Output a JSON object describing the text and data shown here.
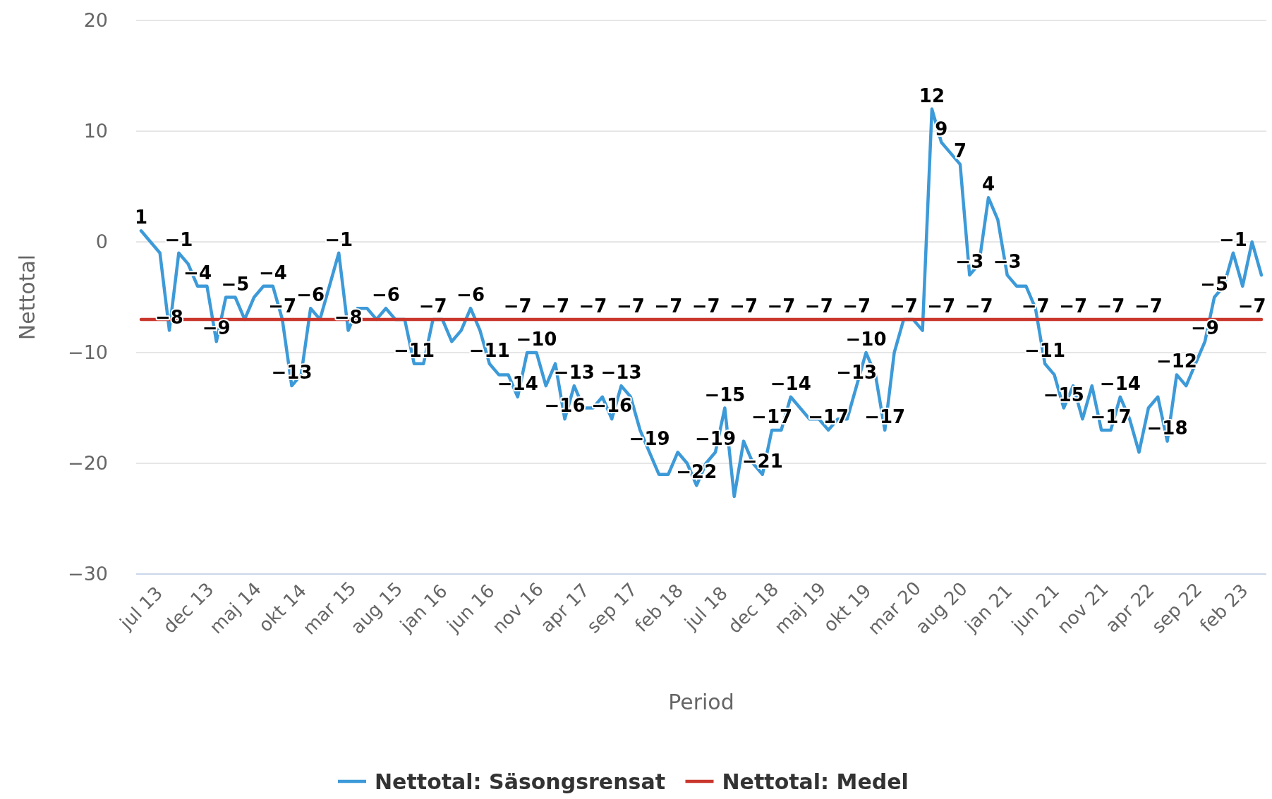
{
  "chart_data": {
    "type": "line",
    "xlabel": "Period",
    "ylabel": "Nettotal",
    "categories": [
      "jul 13",
      null,
      null,
      null,
      null,
      "dec 13",
      null,
      null,
      null,
      null,
      "maj 14",
      null,
      null,
      null,
      null,
      "okt 14",
      null,
      null,
      null,
      null,
      "mar 15",
      null,
      null,
      null,
      null,
      "aug 15",
      null,
      null,
      null,
      null,
      "jan 16",
      null,
      null,
      null,
      null,
      "jun 16",
      null,
      null,
      null,
      null,
      "nov 16",
      null,
      null,
      null,
      null,
      "apr 17",
      null,
      null,
      null,
      null,
      "sep 17",
      null,
      null,
      null,
      null,
      "feb 18",
      null,
      null,
      null,
      null,
      "jul 18",
      null,
      null,
      null,
      null,
      "dec 18",
      null,
      null,
      null,
      null,
      "maj 19",
      null,
      null,
      null,
      null,
      "okt 19",
      null,
      null,
      null,
      null,
      "mar 20",
      null,
      null,
      null,
      null,
      "aug 20",
      null,
      null,
      null,
      null,
      "jan 21",
      null,
      null,
      null,
      null,
      "jun 21",
      null,
      null,
      null,
      null,
      "nov 21",
      null,
      null,
      null,
      null,
      "apr 22",
      null,
      null,
      null,
      null,
      "sep 22",
      null,
      null,
      null,
      null,
      "feb 23",
      null,
      null,
      null,
      null
    ],
    "series": [
      {
        "name": "Nettotal: Säsongsrensat",
        "color": "#3d9ad8",
        "values": [
          1,
          0,
          -1,
          -8,
          -1,
          -2,
          -4,
          -4,
          -9,
          -5,
          -5,
          -7,
          -5,
          -4,
          -4,
          -7,
          -13,
          -12,
          -6,
          -7,
          -4,
          -1,
          -8,
          -6,
          -6,
          -7,
          -6,
          -7,
          -7,
          -11,
          -11,
          -7,
          -7,
          -9,
          -8,
          -6,
          -8,
          -11,
          -12,
          -12,
          -14,
          -10,
          -10,
          -13,
          -11,
          -16,
          -13,
          -15,
          -15,
          -14,
          -16,
          -13,
          -14,
          -17,
          -19,
          -21,
          -21,
          -19,
          -20,
          -22,
          -20,
          -19,
          -15,
          -23,
          -18,
          -20,
          -21,
          -17,
          -17,
          -14,
          -15,
          -16,
          -16,
          -17,
          -16,
          -16,
          -13,
          -10,
          -12,
          -17,
          -10,
          -7,
          -7,
          -8,
          12,
          9,
          8,
          7,
          -3,
          -2,
          4,
          2,
          -3,
          -4,
          -4,
          -6,
          -11,
          -12,
          -15,
          -13,
          -16,
          -13,
          -17,
          -17,
          -14,
          -16,
          -19,
          -15,
          -14,
          -18,
          -12,
          -13,
          -11,
          -9,
          -5,
          -4,
          -1,
          -4,
          0,
          -3
        ],
        "value_labels": [
          "1",
          null,
          null,
          "−8",
          "−1",
          null,
          "−4",
          null,
          "−9",
          null,
          "−5",
          null,
          null,
          null,
          "−4",
          null,
          "−13",
          null,
          "−6",
          null,
          null,
          "−1",
          "−8",
          null,
          null,
          null,
          "−6",
          null,
          null,
          "−11",
          null,
          null,
          null,
          null,
          null,
          "−6",
          null,
          "−11",
          null,
          null,
          "−14",
          null,
          "−10",
          null,
          null,
          "−16",
          "−13",
          null,
          null,
          null,
          "−16",
          "−13",
          null,
          null,
          "−19",
          null,
          null,
          null,
          null,
          "−22",
          null,
          "−19",
          "−15",
          null,
          null,
          null,
          "−21",
          "−17",
          null,
          "−14",
          null,
          null,
          null,
          "−17",
          null,
          null,
          "−13",
          "−10",
          null,
          "−17",
          null,
          null,
          null,
          null,
          "12",
          "9",
          null,
          "7",
          "−3",
          null,
          "4",
          null,
          "−3",
          null,
          null,
          null,
          "−11",
          null,
          "−15",
          null,
          null,
          null,
          null,
          "−17",
          "−14",
          null,
          null,
          null,
          null,
          "−18",
          "−12",
          null,
          null,
          "−9",
          "−5",
          null,
          "−1",
          null,
          null,
          null
        ]
      },
      {
        "name": "Nettotal: Medel",
        "color": "#c9372c",
        "values": [
          -7,
          -7,
          -7,
          -7,
          -7,
          -7,
          -7,
          -7,
          -7,
          -7,
          -7,
          -7,
          -7,
          -7,
          -7,
          -7,
          -7,
          -7,
          -7,
          -7,
          -7,
          -7,
          -7,
          -7,
          -7,
          -7,
          -7,
          -7,
          -7,
          -7,
          -7,
          -7,
          -7,
          -7,
          -7,
          -7,
          -7,
          -7,
          -7,
          -7,
          -7,
          -7,
          -7,
          -7,
          -7,
          -7,
          -7,
          -7,
          -7,
          -7,
          -7,
          -7,
          -7,
          -7,
          -7,
          -7,
          -7,
          -7,
          -7,
          -7,
          -7,
          -7,
          -7,
          -7,
          -7,
          -7,
          -7,
          -7,
          -7,
          -7,
          -7,
          -7,
          -7,
          -7,
          -7,
          -7,
          -7,
          -7,
          -7,
          -7,
          -7,
          -7,
          -7,
          -7,
          -7,
          -7,
          -7,
          -7,
          -7,
          -7,
          -7,
          -7,
          -7,
          -7,
          -7,
          -7,
          -7,
          -7,
          -7,
          -7,
          -7,
          -7,
          -7,
          -7,
          -7,
          -7,
          -7,
          -7,
          -7,
          -7,
          -7,
          -7,
          -7,
          -7,
          -7,
          -7,
          -7,
          -7,
          -7,
          -7
        ],
        "value_labels": [
          null,
          null,
          null,
          null,
          null,
          null,
          null,
          null,
          null,
          null,
          null,
          null,
          null,
          null,
          null,
          "−7",
          null,
          null,
          null,
          null,
          null,
          null,
          null,
          null,
          null,
          null,
          null,
          null,
          null,
          null,
          null,
          "−7",
          null,
          null,
          null,
          null,
          null,
          null,
          null,
          null,
          "−7",
          null,
          null,
          null,
          "−7",
          null,
          null,
          null,
          "−7",
          null,
          null,
          null,
          "−7",
          null,
          null,
          null,
          "−7",
          null,
          null,
          null,
          "−7",
          null,
          null,
          null,
          "−7",
          null,
          null,
          null,
          "−7",
          null,
          null,
          null,
          "−7",
          null,
          null,
          null,
          "−7",
          null,
          null,
          null,
          null,
          "−7",
          null,
          null,
          null,
          "−7",
          null,
          null,
          null,
          "−7",
          null,
          null,
          null,
          null,
          null,
          "−7",
          null,
          null,
          null,
          "−7",
          null,
          null,
          null,
          "−7",
          null,
          null,
          null,
          "−7",
          null,
          null,
          null,
          null,
          null,
          null,
          null,
          null,
          null,
          null,
          "−7",
          null
        ]
      }
    ],
    "ylim": [
      -30,
      20
    ],
    "yticks": [
      20,
      10,
      0,
      {
        "value": -10,
        "label": "−10"
      },
      {
        "value": -20,
        "label": "−20"
      },
      {
        "value": -30,
        "label": "−30"
      }
    ],
    "grid": "y",
    "legend": "bottom",
    "line_style": "solid"
  }
}
